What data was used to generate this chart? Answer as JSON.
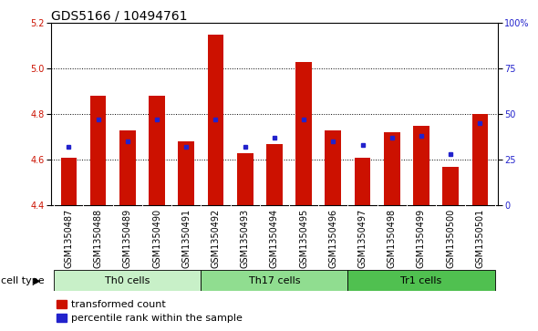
{
  "title": "GDS5166 / 10494761",
  "samples": [
    "GSM1350487",
    "GSM1350488",
    "GSM1350489",
    "GSM1350490",
    "GSM1350491",
    "GSM1350492",
    "GSM1350493",
    "GSM1350494",
    "GSM1350495",
    "GSM1350496",
    "GSM1350497",
    "GSM1350498",
    "GSM1350499",
    "GSM1350500",
    "GSM1350501"
  ],
  "transformed_count": [
    4.61,
    4.88,
    4.73,
    4.88,
    4.68,
    5.15,
    4.63,
    4.67,
    5.03,
    4.73,
    4.61,
    4.72,
    4.75,
    4.57,
    4.8
  ],
  "percentile_rank": [
    32,
    47,
    35,
    47,
    32,
    47,
    32,
    37,
    47,
    35,
    33,
    37,
    38,
    28,
    45
  ],
  "ylim_left": [
    4.4,
    5.2
  ],
  "ylim_right": [
    0,
    100
  ],
  "yticks_left": [
    4.4,
    4.6,
    4.8,
    5.0,
    5.2
  ],
  "ytick_labels_right": [
    "0",
    "25",
    "50",
    "75",
    "100%"
  ],
  "cell_groups": [
    {
      "label": "Th0 cells",
      "start": 0,
      "end": 4,
      "color": "#c8f0c8"
    },
    {
      "label": "Th17 cells",
      "start": 5,
      "end": 9,
      "color": "#90dd90"
    },
    {
      "label": "Tr1 cells",
      "start": 10,
      "end": 14,
      "color": "#50c050"
    }
  ],
  "bar_color": "#cc1100",
  "marker_color": "#2222cc",
  "bar_width": 0.55,
  "bar_bottom": 4.4,
  "legend_items": [
    "transformed count",
    "percentile rank within the sample"
  ],
  "legend_colors": [
    "#cc1100",
    "#2222cc"
  ],
  "cell_type_label": "cell type",
  "bg_color": "#c8c8c8",
  "plot_bg": "#ffffff",
  "title_fontsize": 10,
  "tick_fontsize": 7,
  "label_fontsize": 8
}
